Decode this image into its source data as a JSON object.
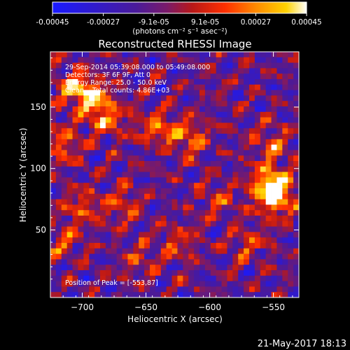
{
  "chart_data": {
    "type": "heatmap",
    "title": "Reconstructed RHESSI Image",
    "xlabel": "Heliocentric X (arcsec)",
    "ylabel": "Heliocentric Y (arcsec)",
    "xlim": [
      -725,
      -530
    ],
    "ylim": [
      -5,
      195
    ],
    "xticks": [
      -700,
      -650,
      -600,
      -550
    ],
    "yticks": [
      50,
      100,
      150
    ],
    "colorbar": {
      "range": [
        -0.00045,
        0.00045
      ],
      "ticks": [
        -0.00045,
        -0.00027,
        -9.1e-05,
        9.1e-05,
        0.00027,
        0.00045
      ],
      "tick_labels": [
        "-0.00045",
        "-0.00027",
        "-9.1e-05",
        "9.1e-05",
        "0.00027",
        "0.00045"
      ],
      "unit_label": "(photons cm⁻² s⁻¹ asec⁻²)",
      "colors": [
        "#1a1aff",
        "#3a1ab0",
        "#5a1b9a",
        "#8a1a6a",
        "#c81010",
        "#ff3a00",
        "#ff8a00",
        "#ffd200",
        "#ffffff"
      ]
    },
    "annotations": [
      "29-Sep-2014 05:39:08.000 to 05:49:08.000",
      "Detectors: 3F 6F 9F, Att 0",
      "Energy Range: 25.0 - 50.0 keV",
      "Clean    Total counts: 4.86E+03"
    ],
    "peak_label": "Position of Peak = [-553,87]",
    "peak": {
      "x": -553,
      "y": 87
    },
    "hotspots": [
      {
        "x": -553,
        "y": 87,
        "level": 1.0
      },
      {
        "x": -548,
        "y": 75,
        "level": 0.8
      },
      {
        "x": -552,
        "y": 120,
        "level": 0.55
      },
      {
        "x": -705,
        "y": 165,
        "level": 0.8
      },
      {
        "x": -690,
        "y": 155,
        "level": 0.7
      },
      {
        "x": -680,
        "y": 140,
        "level": 0.55
      },
      {
        "x": -715,
        "y": 120,
        "level": 0.55
      },
      {
        "x": -615,
        "y": 125,
        "level": 0.65
      },
      {
        "x": -640,
        "y": 132,
        "level": 0.6
      },
      {
        "x": -670,
        "y": 70,
        "level": 0.5
      },
      {
        "x": -700,
        "y": 70,
        "level": 0.45
      },
      {
        "x": -715,
        "y": 40,
        "level": 0.45
      },
      {
        "x": -595,
        "y": 75,
        "level": 0.4
      },
      {
        "x": -625,
        "y": 40,
        "level": 0.4
      },
      {
        "x": -655,
        "y": 25,
        "level": 0.35
      },
      {
        "x": -570,
        "y": 40,
        "level": 0.45
      }
    ]
  },
  "footer": {
    "timestamp": "21-May-2017 18:13"
  }
}
